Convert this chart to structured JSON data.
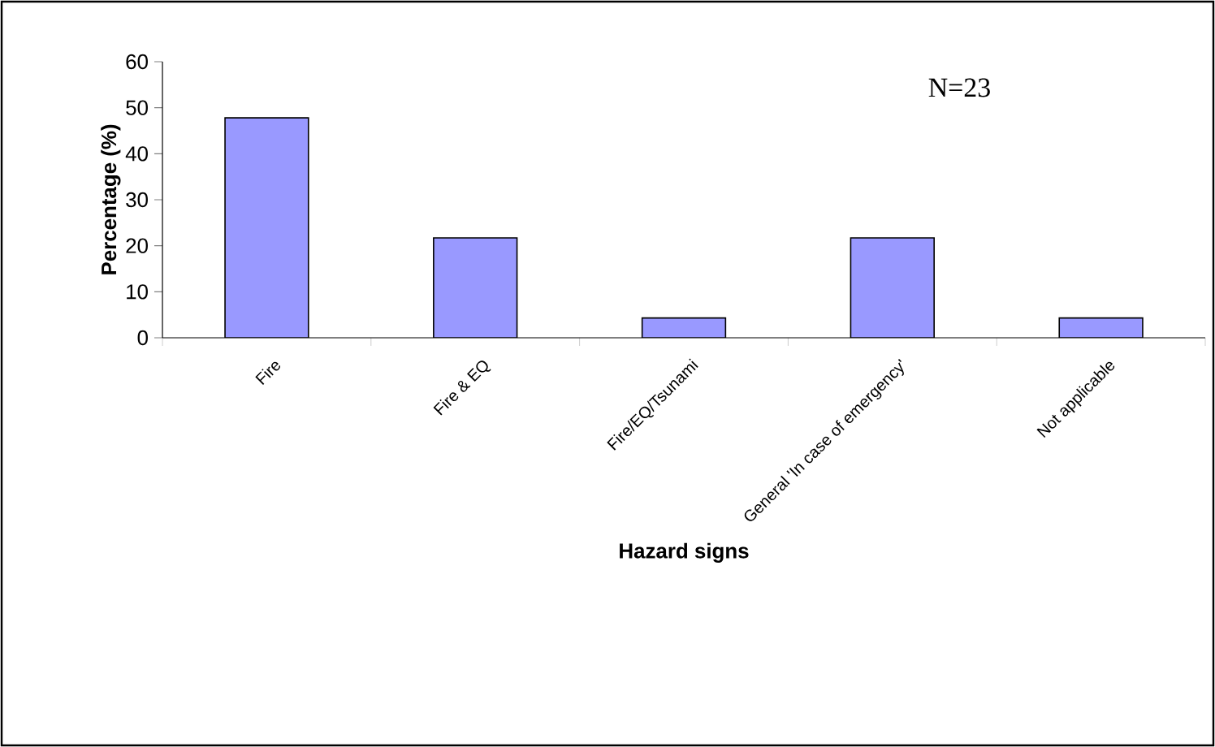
{
  "chart_data": {
    "type": "bar",
    "categories": [
      "Fire",
      "Fire & EQ",
      "Fire/EQ/Tsunami",
      "General 'In case of emergency'",
      "Not applicable"
    ],
    "values": [
      47.8,
      21.7,
      4.3,
      21.7,
      4.3
    ],
    "color": "#9999ff",
    "ylim": [
      0,
      60
    ],
    "yticks": [
      0,
      10,
      20,
      30,
      40,
      50,
      60
    ],
    "xlabel": "Hazard signs",
    "ylabel": "Percentage (%)",
    "annotations": [
      "N=23"
    ],
    "grid": false
  }
}
